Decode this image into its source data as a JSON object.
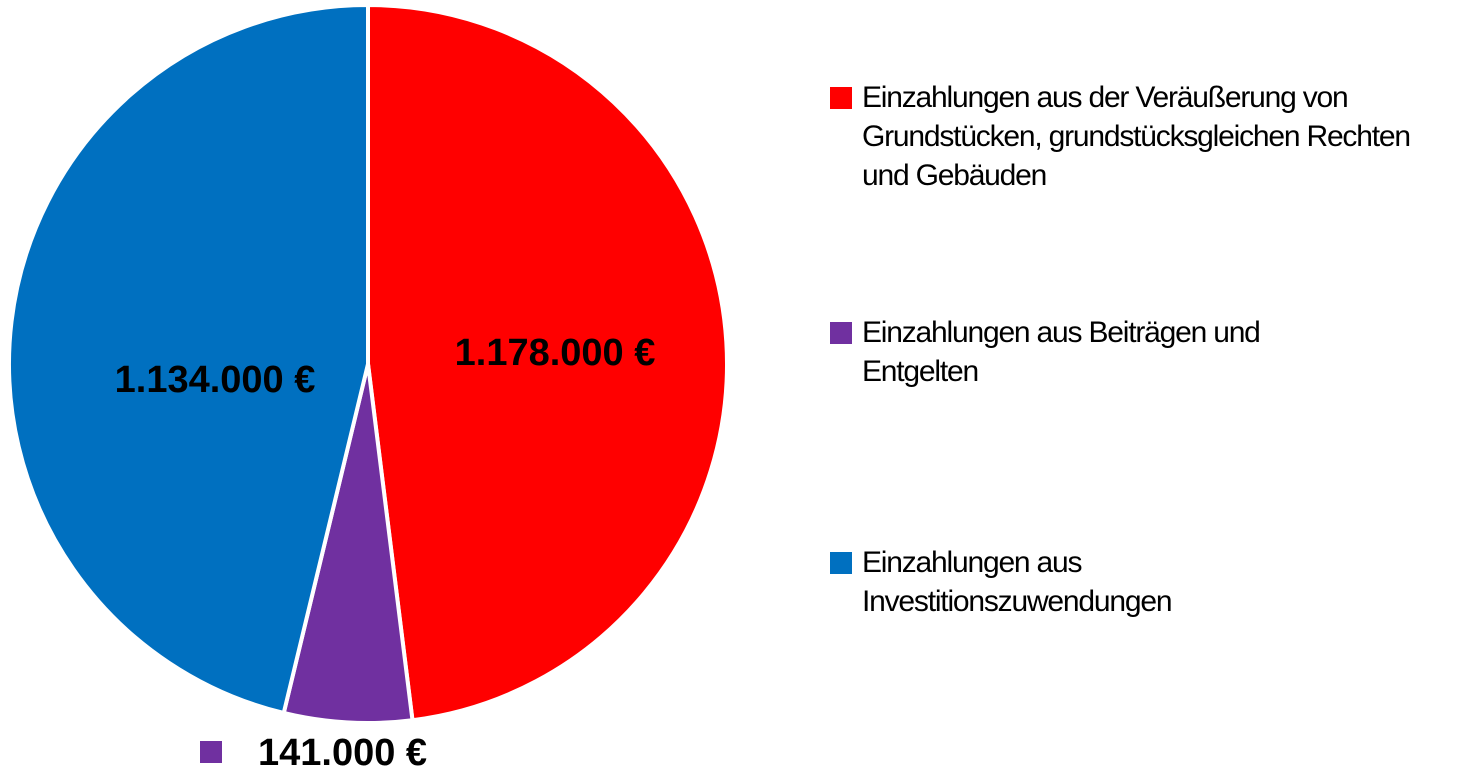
{
  "chart_data": {
    "type": "pie",
    "categories": [
      "Einzahlungen aus der Veräußerung von Grundstücken, grundstücksgleichen Rechten und Gebäuden",
      "Einzahlungen aus Beiträgen und Entgelten",
      "Einzahlungen aus Investitionszuwendungen"
    ],
    "values": [
      1178000,
      141000,
      1134000
    ],
    "value_labels": [
      "1.178.000 €",
      "141.000 €",
      "1.134.000 €"
    ],
    "colors": [
      "#ff0000",
      "#7030a0",
      "#0070c0"
    ],
    "legend": "right"
  }
}
